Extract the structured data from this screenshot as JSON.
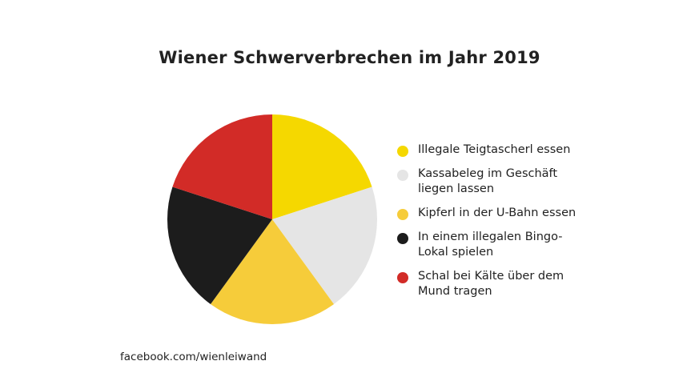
{
  "chart_data": {
    "type": "pie",
    "title": "Wiener Schwerverbrechen im Jahr 2019",
    "slices": [
      {
        "label": "Illegale Teigtascherl essen",
        "value": 20,
        "color": "#f5d800"
      },
      {
        "label": "Kassabeleg im Geschäft liegen lassen",
        "value": 20,
        "color": "#e5e5e5"
      },
      {
        "label": "Kipferl in der U-Bahn essen",
        "value": 20,
        "color": "#f6cc3a"
      },
      {
        "label": "In einem illegalen Bingo-Lokal spielen",
        "value": 20,
        "color": "#1c1c1c"
      },
      {
        "label": "Schal bei Kälte über dem Mund tragen",
        "value": 20,
        "color": "#d22b27"
      }
    ],
    "legend_placement": "right"
  },
  "legend": [
    {
      "line1": "Illegale Teigtascherl essen",
      "line2": ""
    },
    {
      "line1": "Kassabeleg im Geschäft",
      "line2": "liegen lassen"
    },
    {
      "line1": "Kipferl in der U-Bahn essen",
      "line2": ""
    },
    {
      "line1": "In einem illegalen Bingo-",
      "line2": "Lokal spielen"
    },
    {
      "line1": "Schal bei Kälte über dem",
      "line2": "Mund tragen"
    }
  ],
  "source": "facebook.com/wienleiwand"
}
